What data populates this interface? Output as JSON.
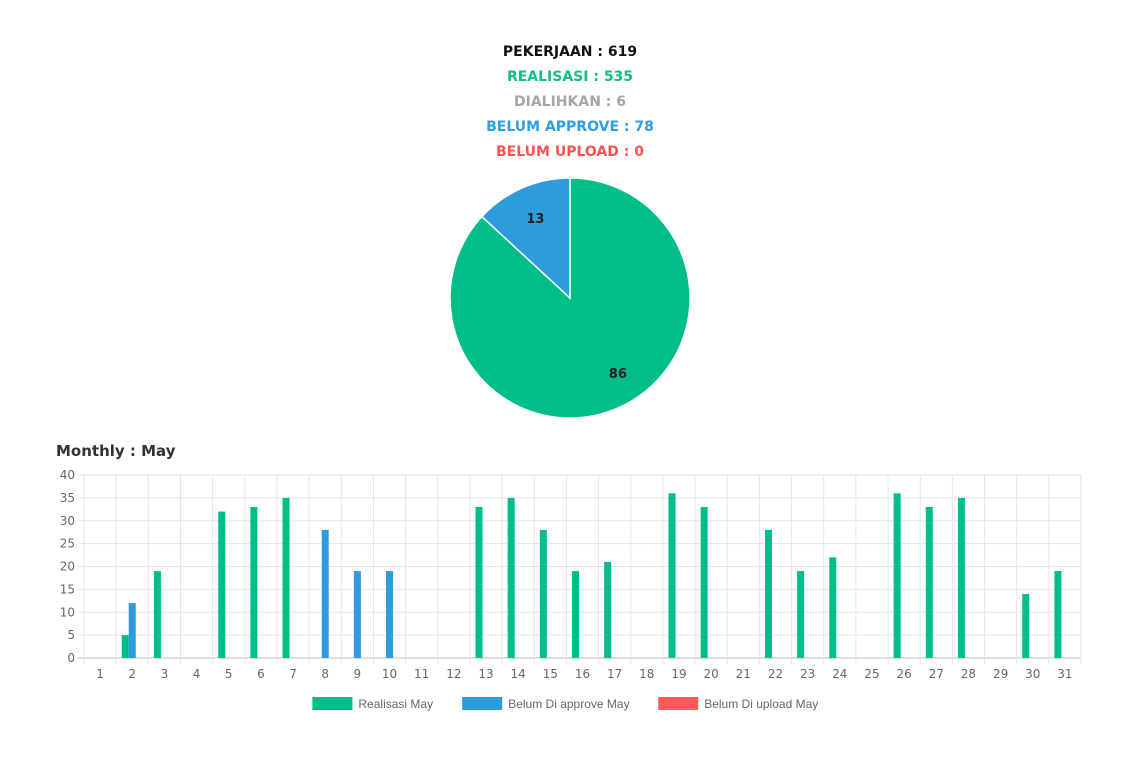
{
  "summary": {
    "pekerjaan": "PEKERJAAN : 619",
    "realisasi": "REALISASI : 535",
    "dialihkan": "DIALIHKAN : 6",
    "belum_approve": "BELUM APPROVE : 78",
    "belum_upload": "BELUM UPLOAD : 0"
  },
  "colors": {
    "realisasi": "#00BE88",
    "approve": "#2E9CDC",
    "upload": "#FF5B5B",
    "dialihkan": "#A6A6A6",
    "grid": "#E6E6E6",
    "axis_text": "#666666"
  },
  "monthly_title": "Monthly : May",
  "chart_data": [
    {
      "type": "pie",
      "slices": [
        {
          "label": "Realisasi",
          "value": 86,
          "color": "#00BE88"
        },
        {
          "label": "Belum Approve",
          "value": 13,
          "color": "#2E9CDC"
        }
      ],
      "data_labels": [
        "86",
        "13"
      ]
    },
    {
      "type": "bar",
      "categories": [
        "1",
        "2",
        "3",
        "4",
        "5",
        "6",
        "7",
        "8",
        "9",
        "10",
        "11",
        "12",
        "13",
        "14",
        "15",
        "16",
        "17",
        "18",
        "19",
        "20",
        "21",
        "22",
        "23",
        "24",
        "25",
        "26",
        "27",
        "28",
        "29",
        "30",
        "31"
      ],
      "series": [
        {
          "name": "Realisasi May",
          "color": "#00BE88",
          "values": [
            0,
            5,
            19,
            0,
            32,
            33,
            35,
            0,
            0,
            0,
            0,
            0,
            33,
            35,
            28,
            19,
            21,
            0,
            36,
            33,
            0,
            28,
            19,
            22,
            0,
            36,
            33,
            35,
            0,
            14,
            19
          ]
        },
        {
          "name": "Belum Di approve May",
          "color": "#2E9CDC",
          "values": [
            0,
            12,
            0,
            0,
            0,
            0,
            0,
            28,
            19,
            19,
            0,
            0,
            0,
            0,
            0,
            0,
            0,
            0,
            0,
            0,
            0,
            0,
            0,
            0,
            0,
            0,
            0,
            0,
            0,
            0,
            0
          ]
        },
        {
          "name": "Belum Di upload May",
          "color": "#FF5B5B",
          "values": [
            0,
            0,
            0,
            0,
            0,
            0,
            0,
            0,
            0,
            0,
            0,
            0,
            0,
            0,
            0,
            0,
            0,
            0,
            0,
            0,
            0,
            0,
            0,
            0,
            0,
            0,
            0,
            0,
            0,
            0,
            0
          ]
        }
      ],
      "ylim": [
        0,
        40
      ],
      "yticks": [
        "0",
        "5",
        "10",
        "15",
        "20",
        "25",
        "30",
        "35",
        "40"
      ],
      "grid": true,
      "legend": "bottom"
    }
  ]
}
